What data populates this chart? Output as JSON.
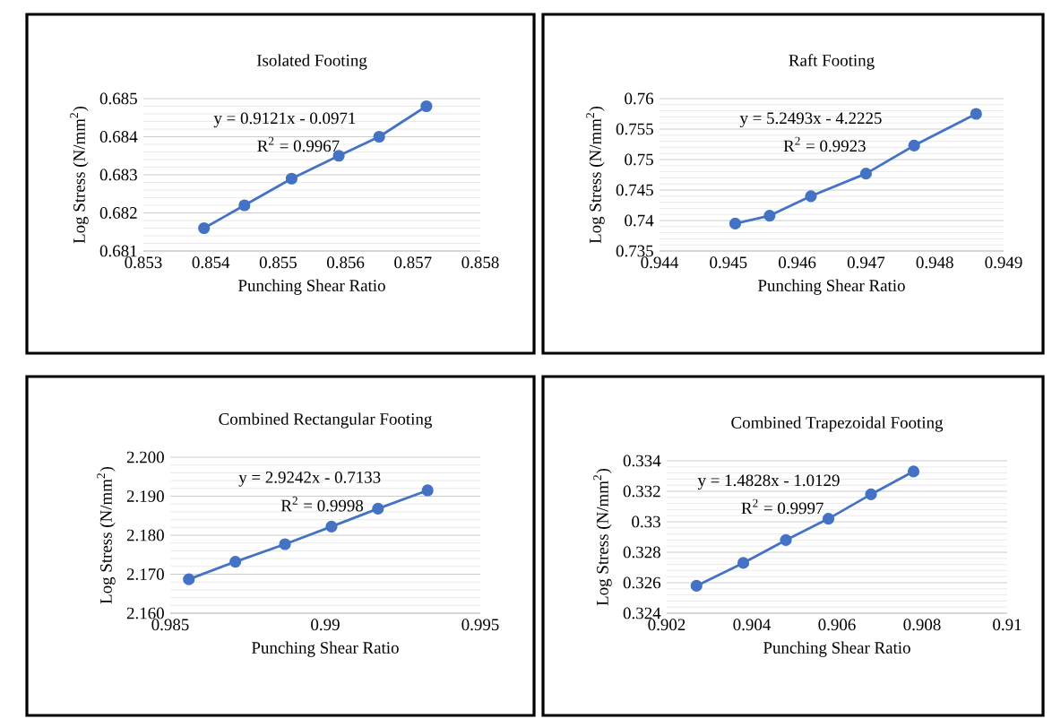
{
  "chart_data": [
    {
      "type": "line",
      "title": "Isolated Footing",
      "xlabel": "Punching Shear Ratio",
      "ylabel": "Log Stress (N/mm$^{2}$)",
      "x": [
        0.8539,
        0.8545,
        0.8552,
        0.8559,
        0.8565,
        0.8572
      ],
      "values": [
        0.6816,
        0.6822,
        0.6829,
        0.6835,
        0.684,
        0.6848
      ],
      "color": "#4472c4",
      "xlim": [
        0.853,
        0.858
      ],
      "xticks": [
        0.853,
        0.854,
        0.855,
        0.856,
        0.857,
        0.858
      ],
      "ylim": [
        0.681,
        0.685
      ],
      "yticks": [
        0.681,
        0.682,
        0.683,
        0.684,
        0.685
      ],
      "annotations": [
        "y = 0.9121x - 0.0971",
        "R$^{2}$ = 0.9967"
      ],
      "grid": "y",
      "marker": "circle",
      "line_style": "solid"
    },
    {
      "type": "line",
      "title": "Raft Footing",
      "xlabel": "Punching Shear Ratio",
      "ylabel": "Log Stress (N/mm$^{2}$)",
      "x": [
        0.9451,
        0.9456,
        0.9462,
        0.947,
        0.9477,
        0.9486
      ],
      "values": [
        0.7395,
        0.7408,
        0.744,
        0.7477,
        0.7523,
        0.7575
      ],
      "color": "#4472c4",
      "xlim": [
        0.944,
        0.949
      ],
      "xticks": [
        0.944,
        0.945,
        0.946,
        0.947,
        0.948,
        0.949
      ],
      "ylim": [
        0.735,
        0.76
      ],
      "yticks": [
        0.735,
        0.74,
        0.745,
        0.75,
        0.755,
        0.76
      ],
      "annotations": [
        "y = 5.2493x - 4.2225",
        "R$^{2}$ = 0.9923"
      ],
      "grid": "y",
      "marker": "circle",
      "line_style": "solid"
    },
    {
      "type": "line",
      "title": "Combined Rectangular Footing",
      "xlabel": "Punching Shear Ratio",
      "ylabel": "Log Stress (N/mm$^{2}$)",
      "x": [
        0.9856,
        0.9871,
        0.9887,
        0.9902,
        0.9917,
        0.9933
      ],
      "values": [
        2.1687,
        2.1732,
        2.1777,
        2.1822,
        2.1868,
        2.1915
      ],
      "color": "#4472c4",
      "xlim": [
        0.985,
        0.995
      ],
      "xticks": [
        0.985,
        0.99,
        0.995
      ],
      "ylim": [
        2.16,
        2.2
      ],
      "yticks": [
        {
          "value": 2.16,
          "label": "2.160"
        },
        {
          "value": 2.17,
          "label": "2.170"
        },
        {
          "value": 2.18,
          "label": "2.180"
        },
        {
          "value": 2.19,
          "label": "2.190"
        },
        {
          "value": 2.2,
          "label": "2.200"
        }
      ],
      "annotations": [
        "y = 2.9242x - 0.7133",
        "R$^{2}$ = 0.9998"
      ],
      "grid": "y",
      "marker": "circle",
      "line_style": "solid"
    },
    {
      "type": "line",
      "title": "Combined Trapezoidal Footing",
      "xlabel": "Punching Shear Ratio",
      "ylabel": "Log Stress (N/mm$^{2}$)",
      "x": [
        0.9027,
        0.9038,
        0.9048,
        0.9058,
        0.9068,
        0.9078
      ],
      "values": [
        0.3258,
        0.3273,
        0.3288,
        0.3302,
        0.3318,
        0.3333
      ],
      "color": "#4472c4",
      "xlim": [
        0.902,
        0.91
      ],
      "xticks": [
        0.902,
        0.904,
        0.906,
        0.908,
        0.91
      ],
      "ylim": [
        0.324,
        0.334
      ],
      "yticks": [
        0.324,
        0.326,
        0.328,
        0.33,
        0.332,
        0.334
      ],
      "annotations": [
        "y = 1.4828x - 1.0129",
        "R$^{2}$ = 0.9997"
      ],
      "grid": "y",
      "marker": "circle",
      "line_style": "solid"
    }
  ]
}
